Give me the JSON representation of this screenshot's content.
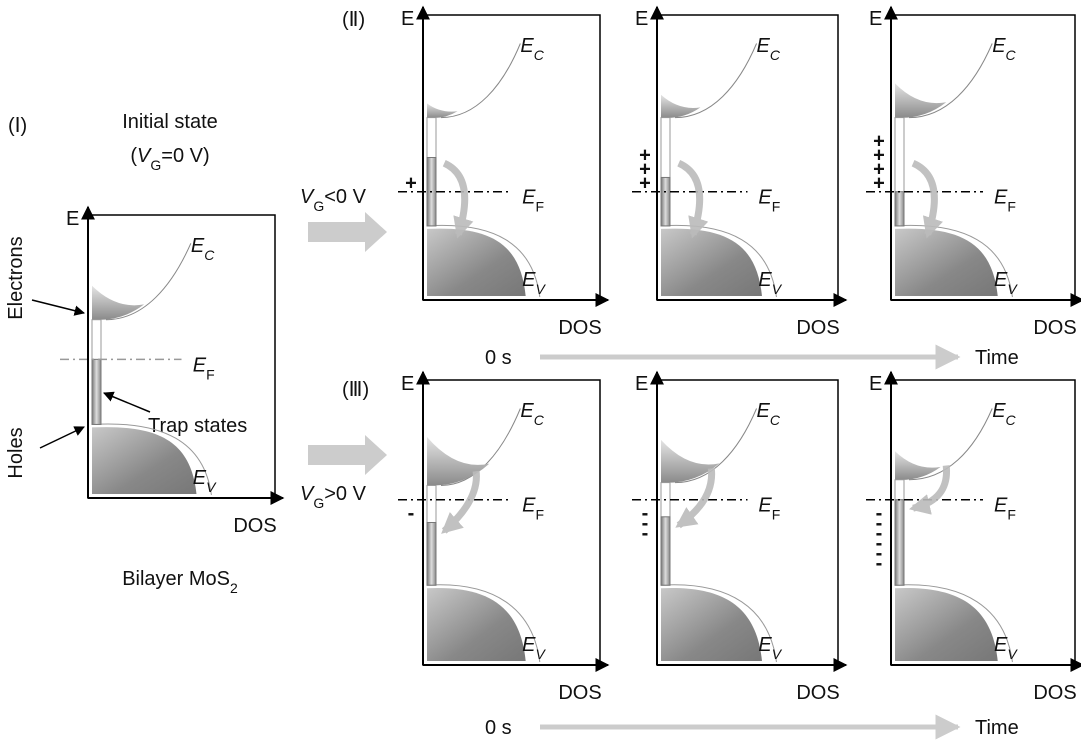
{
  "panel_1": {
    "label": "(Ⅰ)",
    "title": "Initial state",
    "condition": {
      "open": "(",
      "symbol": "V",
      "sub": "G",
      "rest": "=0 V)"
    },
    "electrons": "Electrons",
    "holes": "Holes",
    "trap_states": "Trap states",
    "material": {
      "main": "Bilayer MoS",
      "sub": "2"
    }
  },
  "panel_2": {
    "label": "(Ⅱ)",
    "condition": {
      "symbol": "V",
      "sub": "G",
      "rest": "<0 V"
    },
    "time_start": "0 s",
    "time_end": "Time"
  },
  "panel_3": {
    "label": "(Ⅲ)",
    "condition": {
      "symbol": "V",
      "sub": "G",
      "rest": ">0 V"
    },
    "time_start": "0 s",
    "time_end": "Time"
  },
  "diagrams": [
    {
      "axis_y": "E",
      "axis_x": "DOS",
      "ec": {
        "main": "E",
        "sub": "C"
      },
      "ef": {
        "main": "E",
        "sub": "F"
      },
      "ev": {
        "main": "E",
        "sub": "V"
      }
    },
    {
      "axis_y": "E",
      "axis_x": "DOS",
      "ec": {
        "main": "E",
        "sub": "C"
      },
      "ef": {
        "main": "E",
        "sub": "F"
      },
      "ev": {
        "main": "E",
        "sub": "V"
      },
      "charges": [
        "+"
      ]
    },
    {
      "axis_y": "E",
      "axis_x": "DOS",
      "ec": {
        "main": "E",
        "sub": "C"
      },
      "ef": {
        "main": "E",
        "sub": "F"
      },
      "ev": {
        "main": "E",
        "sub": "V"
      },
      "charges": [
        "+",
        "+",
        "+"
      ]
    },
    {
      "axis_y": "E",
      "axis_x": "DOS",
      "ec": {
        "main": "E",
        "sub": "C"
      },
      "ef": {
        "main": "E",
        "sub": "F"
      },
      "ev": {
        "main": "E",
        "sub": "V"
      },
      "charges": [
        "+",
        "+",
        "+",
        "+"
      ]
    },
    {
      "axis_y": "E",
      "axis_x": "DOS",
      "ec": {
        "main": "E",
        "sub": "C"
      },
      "ef": {
        "main": "E",
        "sub": "F"
      },
      "ev": {
        "main": "E",
        "sub": "V"
      },
      "charges": [
        "-"
      ]
    },
    {
      "axis_y": "E",
      "axis_x": "DOS",
      "ec": {
        "main": "E",
        "sub": "C"
      },
      "ef": {
        "main": "E",
        "sub": "F"
      },
      "ev": {
        "main": "E",
        "sub": "V"
      },
      "charges": [
        "-",
        "-",
        "-"
      ]
    },
    {
      "axis_y": "E",
      "axis_x": "DOS",
      "ec": {
        "main": "E",
        "sub": "C"
      },
      "ef": {
        "main": "E",
        "sub": "F"
      },
      "ev": {
        "main": "E",
        "sub": "V"
      },
      "charges": [
        "-",
        "-",
        "-",
        "-",
        "-",
        "-"
      ]
    }
  ]
}
